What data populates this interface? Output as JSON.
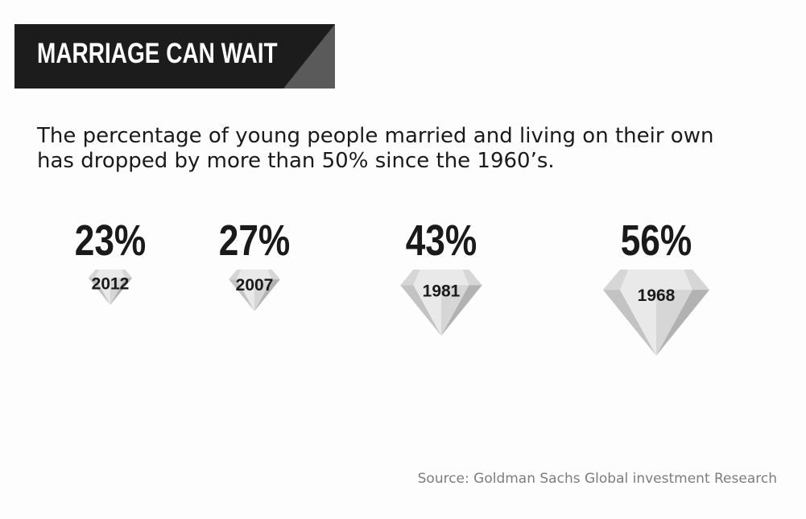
{
  "header": {
    "title": "MARRIAGE CAN WAIT",
    "banner_color": "#1c1c1c",
    "banner_accent_color": "#5a5a5a"
  },
  "subtitle": "The percentage of young people married and living on their own\nhas dropped by more than 50% since the 1960’s.",
  "source": "Source: Goldman Sachs Global investment Research",
  "chart_data": {
    "type": "bar",
    "mark_shape": "diamond",
    "title": "MARRIAGE CAN WAIT",
    "subtitle": "The percentage of young people married and living on their own\nhas dropped by more than 50% since the 1960’s.",
    "xlabel": "",
    "ylabel": "",
    "categories": [
      "2012",
      "2007",
      "1981",
      "1968"
    ],
    "values": [
      23,
      27,
      43,
      56
    ],
    "value_labels": [
      "23%",
      "27%",
      "43%",
      "56%"
    ],
    "unit": "%",
    "grid": false,
    "legend": "none",
    "colors": {
      "light": "#e9e9e9",
      "mid": "#d6d6d6",
      "dark": "#c3c3c3",
      "darker": "#b2b2b2",
      "text": "#1a1a1a"
    }
  }
}
